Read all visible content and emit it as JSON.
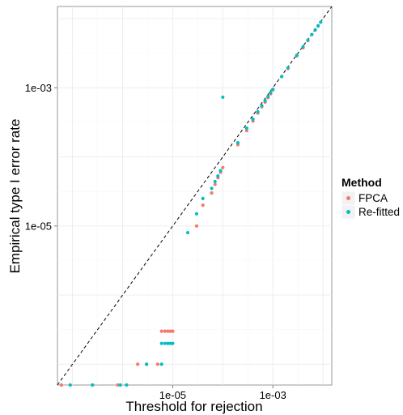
{
  "chart_data": {
    "type": "scatter",
    "xlabel": "Threshold for rejection",
    "ylabel": "Empirical type I error rate",
    "x_scale": "log10",
    "y_scale": "log10",
    "xlim": [
      5e-08,
      0.015
    ],
    "ylim": [
      5e-08,
      0.015
    ],
    "x_ticks": [
      {
        "value": 1e-05,
        "label": "1e-05"
      },
      {
        "value": 0.001,
        "label": "1e-03"
      }
    ],
    "y_ticks": [
      {
        "value": 1e-05,
        "label": "1e-05"
      },
      {
        "value": 0.001,
        "label": "1e-03"
      }
    ],
    "reference_line": "y = x (dashed)",
    "grid": true,
    "legend": {
      "title": "Method",
      "position": "right"
    },
    "series": [
      {
        "name": "FPCA",
        "color": "#F8766D",
        "points": [
          [
            6e-08,
            5e-08
          ],
          [
            2.5e-07,
            5e-08
          ],
          [
            8e-07,
            5e-08
          ],
          [
            2e-06,
            1e-07
          ],
          [
            3e-06,
            1e-07
          ],
          [
            5e-06,
            1e-07
          ],
          [
            6e-06,
            3e-07
          ],
          [
            7e-06,
            3e-07
          ],
          [
            8e-06,
            3e-07
          ],
          [
            9e-06,
            3e-07
          ],
          [
            1e-05,
            3e-07
          ],
          [
            3e-05,
            1e-05
          ],
          [
            4e-05,
            2e-05
          ],
          [
            6e-05,
            3e-05
          ],
          [
            7e-05,
            4e-05
          ],
          [
            8e-05,
            5e-05
          ],
          [
            9e-05,
            6e-05
          ],
          [
            0.0001,
            7e-05
          ],
          [
            0.0002,
            0.00015
          ],
          [
            0.0003,
            0.00024
          ],
          [
            0.0004,
            0.00033
          ],
          [
            0.0005,
            0.00043
          ],
          [
            0.0006,
            0.00053
          ],
          [
            0.0007,
            0.00062
          ],
          [
            0.0008,
            0.00072
          ],
          [
            0.0009,
            0.00082
          ],
          [
            0.001,
            0.00093
          ],
          [
            0.002,
            0.0019
          ],
          [
            0.003,
            0.0029
          ],
          [
            0.004,
            0.0038
          ],
          [
            0.005,
            0.0048
          ],
          [
            0.006,
            0.0059
          ],
          [
            0.007,
            0.0068
          ],
          [
            0.008,
            0.0078
          ]
        ]
      },
      {
        "name": "Re-fitted",
        "color": "#00BFC4",
        "points": [
          [
            9e-08,
            5e-08
          ],
          [
            2.5e-07,
            5e-08
          ],
          [
            9e-07,
            5e-08
          ],
          [
            1.2e-06,
            5e-08
          ],
          [
            3e-06,
            1e-07
          ],
          [
            6e-06,
            1e-07
          ],
          [
            6e-06,
            2e-07
          ],
          [
            7e-06,
            2e-07
          ],
          [
            8e-06,
            2e-07
          ],
          [
            9e-06,
            2e-07
          ],
          [
            1e-05,
            2e-07
          ],
          [
            2e-05,
            8e-06
          ],
          [
            3e-05,
            1.5e-05
          ],
          [
            4e-05,
            2.5e-05
          ],
          [
            6e-05,
            3.5e-05
          ],
          [
            7e-05,
            4.4e-05
          ],
          [
            8e-05,
            5.3e-05
          ],
          [
            9e-05,
            6.3e-05
          ],
          [
            0.0001,
            0.00073
          ],
          [
            0.0002,
            0.00016
          ],
          [
            0.0003,
            0.00026
          ],
          [
            0.0004,
            0.00035
          ],
          [
            0.0005,
            0.00045
          ],
          [
            0.0006,
            0.00055
          ],
          [
            0.0007,
            0.00065
          ],
          [
            0.0008,
            0.00075
          ],
          [
            0.0009,
            0.00085
          ],
          [
            0.001,
            0.00095
          ],
          [
            0.0015,
            0.00145
          ],
          [
            0.002,
            0.00195
          ],
          [
            0.003,
            0.00295
          ],
          [
            0.004,
            0.0039
          ],
          [
            0.005,
            0.0049
          ],
          [
            0.006,
            0.0059
          ],
          [
            0.007,
            0.0069
          ],
          [
            0.008,
            0.0079
          ],
          [
            0.009,
            0.0089
          ]
        ]
      }
    ]
  }
}
